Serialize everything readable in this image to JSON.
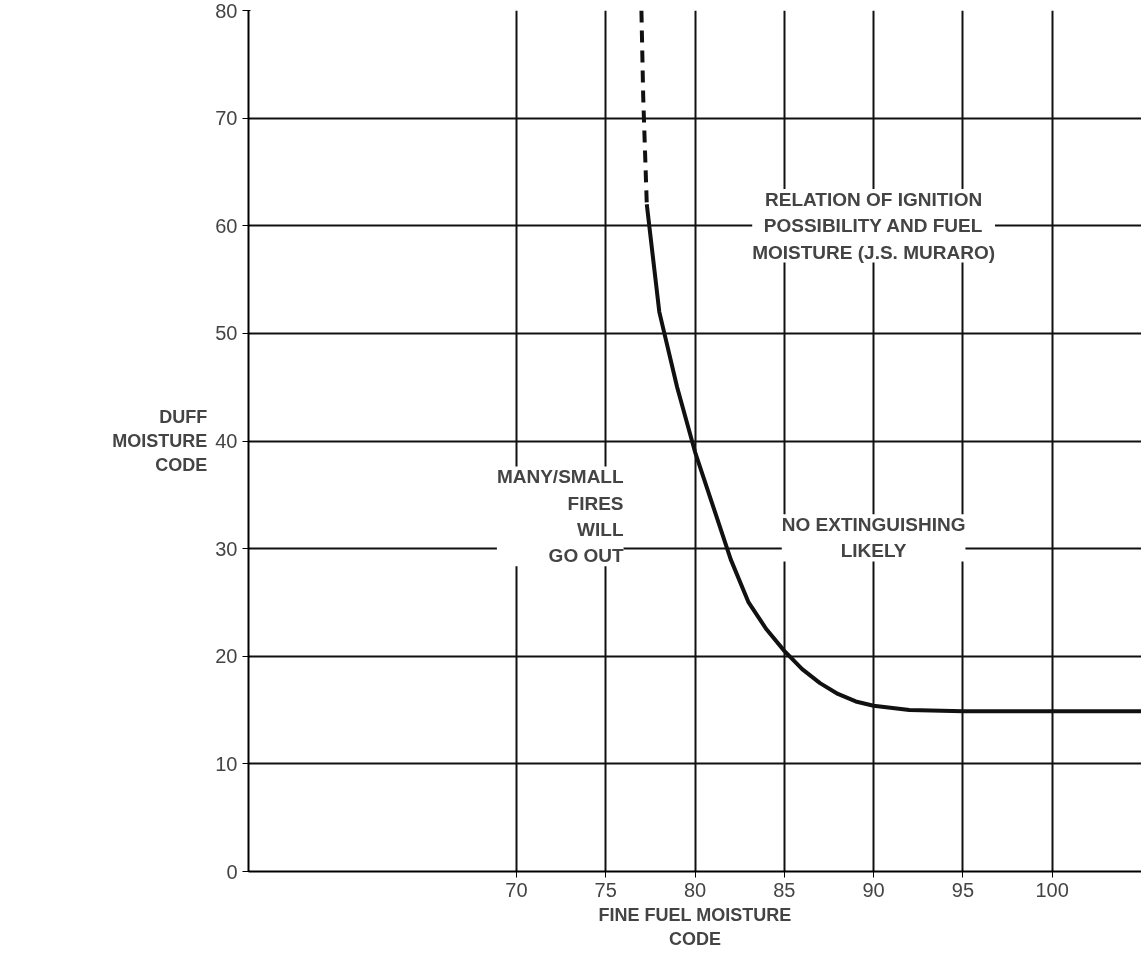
{
  "chart_data": {
    "type": "line",
    "xlabel": "FINE FUEL MOISTURE\nCODE",
    "ylabel": "DUFF\nMOISTURE\nCODE",
    "series": [
      {
        "color": "#111111",
        "line_style": "dashed",
        "x": [
          77,
          77.1,
          77.3
        ],
        "values": [
          80,
          72,
          62
        ]
      },
      {
        "color": "#111111",
        "line_style": "solid",
        "x": [
          77.3,
          78,
          79,
          80,
          81,
          82,
          83,
          84,
          85,
          86,
          87,
          88,
          89,
          90,
          92,
          95,
          100,
          105
        ],
        "values": [
          62,
          52,
          45,
          39,
          34,
          29,
          25,
          22.5,
          20.5,
          18.8,
          17.5,
          16.5,
          15.8,
          15.4,
          15,
          14.9,
          14.9,
          14.9
        ]
      }
    ],
    "xlim": [
      55,
      105
    ],
    "xticks": [
      70,
      75,
      80,
      85,
      90,
      95,
      100
    ],
    "ylim": [
      0,
      80
    ],
    "yticks": [
      0,
      10,
      20,
      30,
      40,
      50,
      60,
      70,
      80
    ],
    "grid": true,
    "marker": "none",
    "annotations": [
      "RELATION OF IGNITION\nPOSSIBILITY AND FUEL\nMOISTURE (J.S. MURARO)",
      "MANY/SMALL\nFIRES\nWILL\nGO OUT",
      "NO EXTINGUISHING\nLIKELY"
    ]
  }
}
